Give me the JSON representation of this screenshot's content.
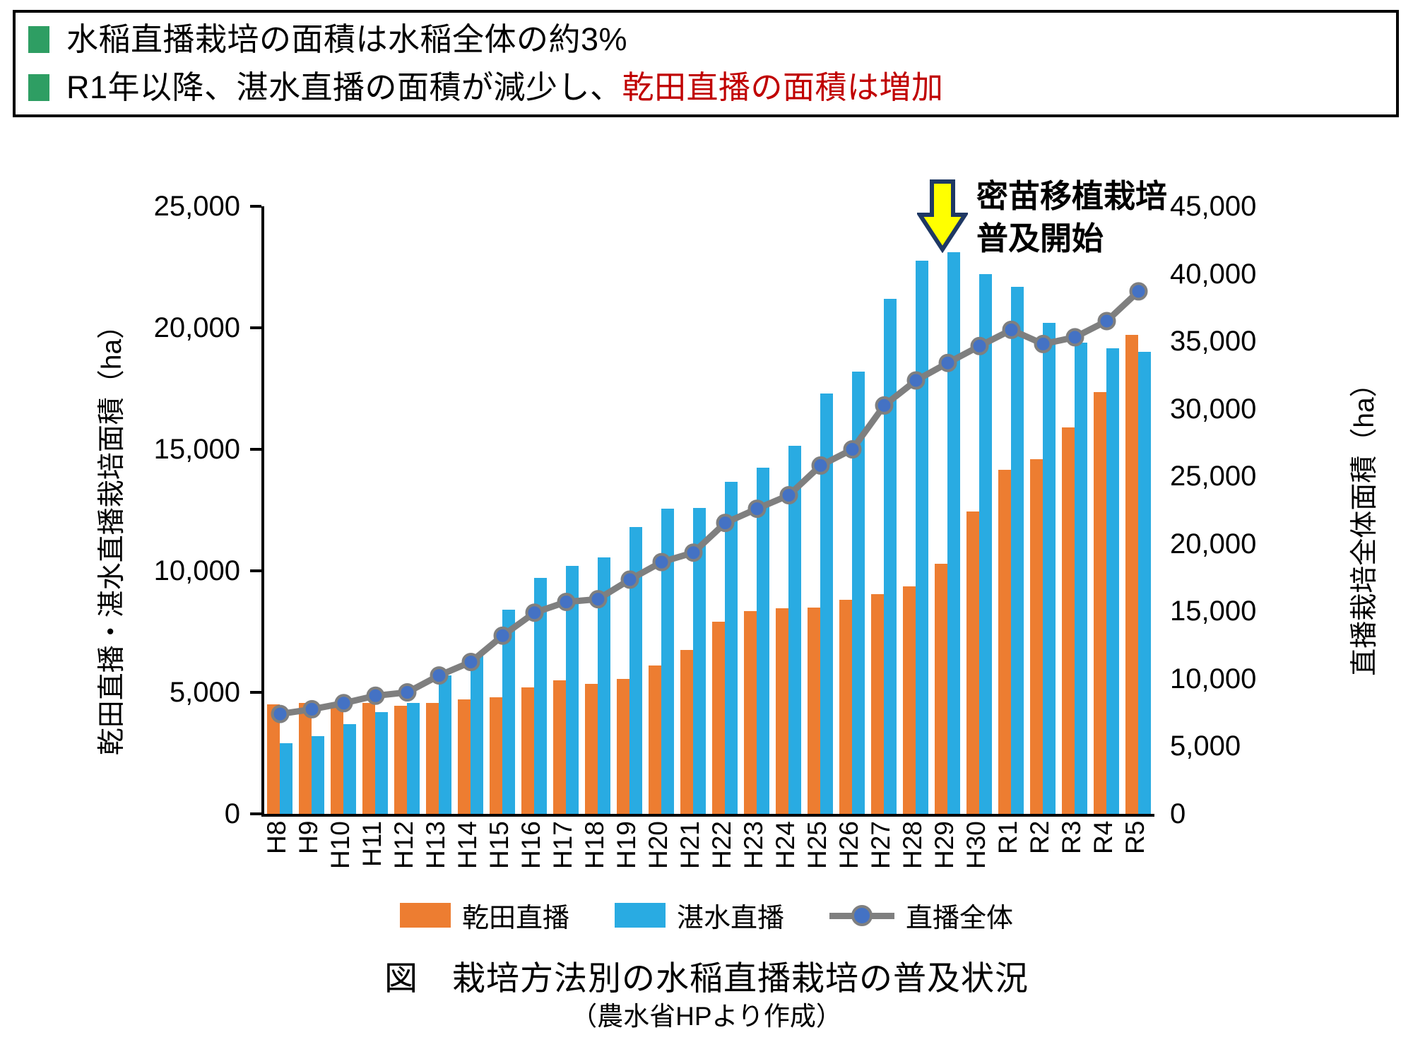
{
  "header": {
    "bullets": [
      {
        "text_black": "水稲直播栽培の面積は水稲全体の約3%",
        "text_red": ""
      },
      {
        "text_black": "R1年以降、湛水直播の面積が減少し、",
        "text_red": "乾田直播の面積は増加"
      }
    ],
    "bullet_color": "#2E9E63",
    "red_color": "#C00000"
  },
  "chart_data": {
    "type": "bar",
    "subtype": "grouped-bars-with-line",
    "categories": [
      "H8",
      "H9",
      "H10",
      "H11",
      "H12",
      "H13",
      "H14",
      "H15",
      "H16",
      "H17",
      "H18",
      "H19",
      "H20",
      "H21",
      "H22",
      "H23",
      "H24",
      "H25",
      "H26",
      "H27",
      "H28",
      "H29",
      "H30",
      "R1",
      "R2",
      "R3",
      "R4",
      "R5"
    ],
    "series": [
      {
        "name": "乾田直播",
        "type": "bar",
        "axis": "left",
        "color": "#ED7D31",
        "values": [
          4500,
          4550,
          4500,
          4550,
          4450,
          4550,
          4700,
          4800,
          5200,
          5500,
          5350,
          5550,
          6100,
          6750,
          7900,
          8350,
          8450,
          8500,
          8800,
          9050,
          9350,
          10300,
          12450,
          14150,
          14600,
          15900,
          17350,
          19700
        ]
      },
      {
        "name": "湛水直播",
        "type": "bar",
        "axis": "left",
        "color": "#29ABE2",
        "values": [
          2900,
          3200,
          3700,
          4200,
          4550,
          5700,
          6550,
          8400,
          9700,
          10200,
          10550,
          11800,
          12550,
          12600,
          13650,
          14250,
          15150,
          17300,
          18200,
          21200,
          22750,
          23100,
          22200,
          21700,
          20200,
          19400,
          19150,
          19000
        ]
      },
      {
        "name": "直播全体",
        "type": "line",
        "axis": "right",
        "color": "#7F7F7F",
        "marker_color": "#4472C4",
        "marker_border": "#7F7F7F",
        "values": [
          7400,
          7750,
          8200,
          8750,
          9000,
          10250,
          11250,
          13200,
          14900,
          15700,
          15900,
          17350,
          18650,
          19350,
          21550,
          22600,
          23600,
          25800,
          27000,
          30250,
          32100,
          33400,
          34650,
          35850,
          34800,
          35300,
          36500,
          38700
        ]
      }
    ],
    "left_axis": {
      "title": "乾田直播・湛水直播栽培面積（ha）",
      "min": 0,
      "max": 25000,
      "step": 5000
    },
    "right_axis": {
      "title": "直播栽培全体面積（ha）",
      "min": 0,
      "max": 45000,
      "step": 5000
    },
    "grid": false,
    "legend_position": "bottom",
    "annotation": {
      "line1": "密苗移植栽培",
      "line2": "普及開始",
      "arrow_fill": "#FFFF00",
      "arrow_border": "#1F3864",
      "target_category": "H28"
    }
  },
  "caption": {
    "title": "図　栽培方法別の水稲直播栽培の普及状況",
    "source": "（農水省HPより作成）"
  }
}
